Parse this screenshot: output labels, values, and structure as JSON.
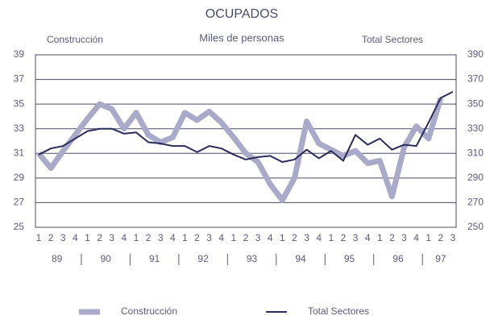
{
  "chart_data": {
    "type": "line",
    "title": "OCUPADOS",
    "subtitle": "Miles de personas",
    "y_label": "Construcción",
    "y2_label": "Total Sectores",
    "categories": [
      "1",
      "2",
      "3",
      "4",
      "1",
      "2",
      "3",
      "4",
      "1",
      "2",
      "3",
      "4",
      "1",
      "2",
      "3",
      "4",
      "1",
      "2",
      "3",
      "4",
      "1",
      "2",
      "3",
      "4",
      "1",
      "2",
      "3",
      "4",
      "1",
      "2",
      "3",
      "4",
      "1",
      "2",
      "3"
    ],
    "year_labels": [
      "89",
      "90",
      "91",
      "92",
      "93",
      "94",
      "95",
      "96",
      "97"
    ],
    "ylim": [
      25,
      39
    ],
    "yticks": [
      25,
      27,
      29,
      31,
      33,
      35,
      37,
      39
    ],
    "y2lim": [
      250,
      390
    ],
    "y2ticks": [
      250,
      270,
      290,
      310,
      330,
      350,
      370,
      390
    ],
    "grid": true,
    "series": [
      {
        "name": "Construcción",
        "color": "#a9a9c9",
        "values": [
          31,
          29.8,
          31.2,
          32.5,
          33.8,
          35,
          34.6,
          33,
          34.3,
          32.5,
          31.9,
          32.3,
          34.3,
          33.7,
          34.4,
          33.5,
          32.3,
          31,
          30.3,
          28.5,
          27.2,
          29,
          33.6,
          31.8,
          31.3,
          30.8,
          31.2,
          30.2,
          30.4,
          27.5,
          31.5,
          33.2,
          32.2,
          35.5,
          null
        ]
      },
      {
        "name": "Total Sectores",
        "color": "#2b2b5c",
        "axis": "y2",
        "values": [
          309,
          314,
          316,
          322,
          328,
          330,
          330,
          326,
          327,
          319,
          318,
          316,
          316,
          311,
          316,
          314,
          309,
          305,
          307,
          308,
          303,
          305,
          313,
          306,
          312,
          304,
          325,
          317,
          322,
          313,
          317,
          316,
          335,
          355,
          360
        ]
      }
    ]
  }
}
